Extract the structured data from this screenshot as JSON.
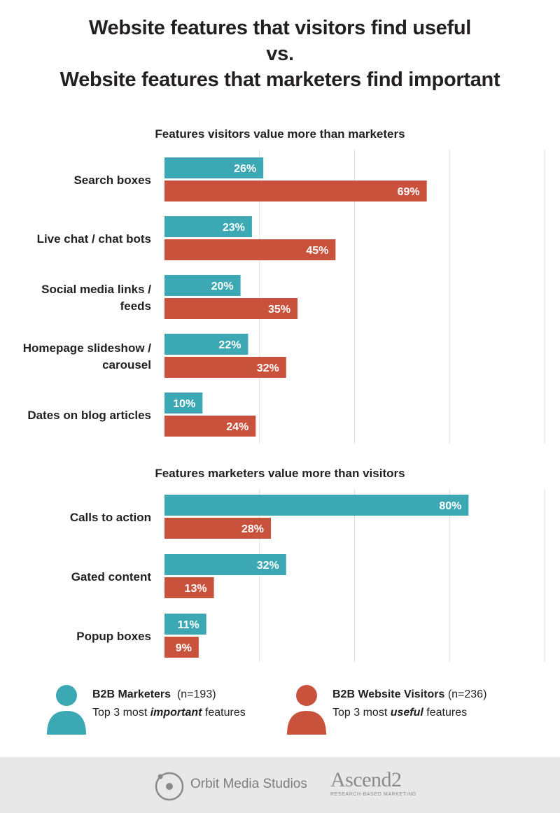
{
  "title_lines": [
    "Website features that visitors find useful",
    "vs.",
    "Website features that marketers find important"
  ],
  "colors": {
    "marketers": "#3ba8b3",
    "visitors": "#c9523d",
    "grid": "#dedede"
  },
  "chart_data": [
    {
      "type": "bar",
      "orientation": "horizontal",
      "title": "Features visitors value more than marketers",
      "categories": [
        "Search boxes",
        "Live chat / chat bots",
        "Social media links / feeds",
        "Homepage slideshow / carousel",
        "Dates on blog articles"
      ],
      "category_lines": [
        [
          "Search boxes"
        ],
        [
          "Live chat / chat bots"
        ],
        [
          "Social media links /",
          "feeds"
        ],
        [
          "Homepage slideshow /",
          "carousel"
        ],
        [
          "Dates on blog articles"
        ]
      ],
      "series": [
        {
          "name": "B2B Marketers",
          "values": [
            26,
            23,
            20,
            22,
            10
          ]
        },
        {
          "name": "B2B Website Visitors",
          "values": [
            69,
            45,
            35,
            32,
            24
          ]
        }
      ],
      "value_suffix": "%",
      "xlim": [
        0,
        100
      ],
      "grid": true
    },
    {
      "type": "bar",
      "orientation": "horizontal",
      "title": "Features marketers value more than visitors",
      "categories": [
        "Calls to action",
        "Gated content",
        "Popup boxes"
      ],
      "category_lines": [
        [
          "Calls to action"
        ],
        [
          "Gated content"
        ],
        [
          "Popup boxes"
        ]
      ],
      "series": [
        {
          "name": "B2B Marketers",
          "values": [
            80,
            32,
            11
          ]
        },
        {
          "name": "B2B Website Visitors",
          "values": [
            28,
            13,
            9
          ]
        }
      ],
      "value_suffix": "%",
      "xlim": [
        0,
        100
      ],
      "grid": true
    }
  ],
  "legend": {
    "marketers": {
      "name": "B2B Marketers",
      "n": "(n=193)",
      "line2_pre": "Top 3 most ",
      "line2_em": "important",
      "line2_post": " features"
    },
    "visitors": {
      "name": "B2B Website Visitors",
      "n": "(n=236)",
      "line2_pre": "Top 3 most ",
      "line2_em": "useful",
      "line2_post": " features"
    }
  },
  "footer": {
    "orbit": "Orbit Media Studios",
    "ascend": "Ascend2",
    "ascend_tagline": "RESEARCH-BASED MARKETING"
  }
}
